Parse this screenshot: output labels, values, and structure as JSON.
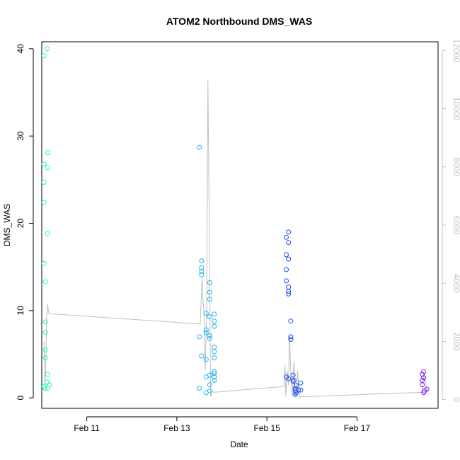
{
  "chart_data": {
    "type": "scatter",
    "title": "ATOM2 Northbound DMS_WAS",
    "xlabel": "Date",
    "ylabel": "DMS_WAS",
    "x_ticks": [
      "Feb 11",
      "Feb 13",
      "Feb 15",
      "Feb 17"
    ],
    "x_unit": "day of February",
    "x_range": [
      10.0,
      18.8
    ],
    "ylim": [
      -1.2,
      40.8
    ],
    "y_ticks": [
      "0",
      "10",
      "20",
      "30",
      "40"
    ],
    "y2lim": [
      -300,
      12300
    ],
    "y2_ticks": [
      "0",
      "2000",
      "4000",
      "6000",
      "8000",
      "10000",
      "12000"
    ],
    "grid": false,
    "legend": "none",
    "points": [
      {
        "x": 10.12,
        "y": 40.0,
        "color": "#2af5c8"
      },
      {
        "x": 10.05,
        "y": 39.2,
        "color": "#2af5c8"
      },
      {
        "x": 10.13,
        "y": 28.1,
        "color": "#2af5c8"
      },
      {
        "x": 10.05,
        "y": 26.8,
        "color": "#2af5c8"
      },
      {
        "x": 10.13,
        "y": 26.4,
        "color": "#2af5c8"
      },
      {
        "x": 10.05,
        "y": 24.7,
        "color": "#2af5c8"
      },
      {
        "x": 10.05,
        "y": 22.4,
        "color": "#2af5c8"
      },
      {
        "x": 10.13,
        "y": 18.8,
        "color": "#2af5c8"
      },
      {
        "x": 10.05,
        "y": 15.4,
        "color": "#2af5c8"
      },
      {
        "x": 10.08,
        "y": 13.3,
        "color": "#2af5c8"
      },
      {
        "x": 10.08,
        "y": 8.7,
        "color": "#2af5c8"
      },
      {
        "x": 10.08,
        "y": 7.5,
        "color": "#2af5c8"
      },
      {
        "x": 10.08,
        "y": 5.5,
        "color": "#2af5c8"
      },
      {
        "x": 10.08,
        "y": 4.6,
        "color": "#2af5c8"
      },
      {
        "x": 10.13,
        "y": 2.7,
        "color": "#2af5c8"
      },
      {
        "x": 10.12,
        "y": 1.8,
        "color": "#2af5c8"
      },
      {
        "x": 10.17,
        "y": 1.5,
        "color": "#2af5c8"
      },
      {
        "x": 10.05,
        "y": 1.3,
        "color": "#2af5c8"
      },
      {
        "x": 10.07,
        "y": 1.1,
        "color": "#2af5c8"
      },
      {
        "x": 10.13,
        "y": 1.1,
        "color": "#2af5c8"
      },
      {
        "x": 13.5,
        "y": 28.7,
        "color": "#1ab8f0"
      },
      {
        "x": 13.55,
        "y": 15.7,
        "color": "#1ab8f0"
      },
      {
        "x": 13.55,
        "y": 14.9,
        "color": "#1ab8f0"
      },
      {
        "x": 13.55,
        "y": 14.5,
        "color": "#1ab8f0"
      },
      {
        "x": 13.55,
        "y": 14.1,
        "color": "#1ab8f0"
      },
      {
        "x": 13.73,
        "y": 13.2,
        "color": "#1ab8f0"
      },
      {
        "x": 13.73,
        "y": 12.1,
        "color": "#1ab8f0"
      },
      {
        "x": 13.73,
        "y": 11.3,
        "color": "#1ab8f0"
      },
      {
        "x": 13.65,
        "y": 9.7,
        "color": "#1ab8f0"
      },
      {
        "x": 13.83,
        "y": 9.6,
        "color": "#1ab8f0"
      },
      {
        "x": 13.73,
        "y": 9.3,
        "color": "#1ab8f0"
      },
      {
        "x": 13.83,
        "y": 8.8,
        "color": "#1ab8f0"
      },
      {
        "x": 13.83,
        "y": 8.2,
        "color": "#1ab8f0"
      },
      {
        "x": 13.65,
        "y": 7.8,
        "color": "#1ab8f0"
      },
      {
        "x": 13.65,
        "y": 7.5,
        "color": "#1ab8f0"
      },
      {
        "x": 13.73,
        "y": 7.1,
        "color": "#1ab8f0"
      },
      {
        "x": 13.5,
        "y": 7.0,
        "color": "#1ab8f0"
      },
      {
        "x": 13.73,
        "y": 6.8,
        "color": "#1ab8f0"
      },
      {
        "x": 13.83,
        "y": 5.8,
        "color": "#1ab8f0"
      },
      {
        "x": 13.83,
        "y": 5.3,
        "color": "#1ab8f0"
      },
      {
        "x": 13.55,
        "y": 4.8,
        "color": "#1ab8f0"
      },
      {
        "x": 13.83,
        "y": 4.6,
        "color": "#1ab8f0"
      },
      {
        "x": 13.65,
        "y": 4.4,
        "color": "#1ab8f0"
      },
      {
        "x": 13.83,
        "y": 3.0,
        "color": "#1ab8f0"
      },
      {
        "x": 13.83,
        "y": 2.8,
        "color": "#1ab8f0"
      },
      {
        "x": 13.73,
        "y": 2.6,
        "color": "#1ab8f0"
      },
      {
        "x": 13.83,
        "y": 2.4,
        "color": "#1ab8f0"
      },
      {
        "x": 13.65,
        "y": 2.4,
        "color": "#1ab8f0"
      },
      {
        "x": 13.83,
        "y": 2.0,
        "color": "#1ab8f0"
      },
      {
        "x": 13.73,
        "y": 1.5,
        "color": "#1ab8f0"
      },
      {
        "x": 13.5,
        "y": 1.1,
        "color": "#1ab8f0"
      },
      {
        "x": 13.73,
        "y": 0.8,
        "color": "#1ab8f0"
      },
      {
        "x": 13.65,
        "y": 0.6,
        "color": "#1ab8f0"
      },
      {
        "x": 15.48,
        "y": 19.0,
        "color": "#1f4cf0"
      },
      {
        "x": 15.43,
        "y": 18.4,
        "color": "#1f4cf0"
      },
      {
        "x": 15.48,
        "y": 17.8,
        "color": "#1f4cf0"
      },
      {
        "x": 15.43,
        "y": 16.4,
        "color": "#1f4cf0"
      },
      {
        "x": 15.48,
        "y": 15.9,
        "color": "#1f4cf0"
      },
      {
        "x": 15.43,
        "y": 14.7,
        "color": "#1f4cf0"
      },
      {
        "x": 15.43,
        "y": 13.4,
        "color": "#1f4cf0"
      },
      {
        "x": 15.48,
        "y": 12.7,
        "color": "#1f4cf0"
      },
      {
        "x": 15.48,
        "y": 12.2,
        "color": "#1f4cf0"
      },
      {
        "x": 15.48,
        "y": 11.9,
        "color": "#1f4cf0"
      },
      {
        "x": 15.53,
        "y": 8.8,
        "color": "#1f4cf0"
      },
      {
        "x": 15.53,
        "y": 7.0,
        "color": "#1f4cf0"
      },
      {
        "x": 15.53,
        "y": 6.7,
        "color": "#1f4cf0"
      },
      {
        "x": 15.58,
        "y": 2.6,
        "color": "#1f4cf0"
      },
      {
        "x": 15.43,
        "y": 2.4,
        "color": "#1f4cf0"
      },
      {
        "x": 15.48,
        "y": 2.2,
        "color": "#1f4cf0"
      },
      {
        "x": 15.6,
        "y": 2.0,
        "color": "#1f4cf0"
      },
      {
        "x": 15.58,
        "y": 1.9,
        "color": "#1f4cf0"
      },
      {
        "x": 15.75,
        "y": 1.7,
        "color": "#1f4cf0"
      },
      {
        "x": 15.65,
        "y": 1.4,
        "color": "#1f4cf0"
      },
      {
        "x": 15.63,
        "y": 1.1,
        "color": "#1f4cf0"
      },
      {
        "x": 15.7,
        "y": 0.9,
        "color": "#1f4cf0"
      },
      {
        "x": 15.75,
        "y": 0.9,
        "color": "#1f4cf0"
      },
      {
        "x": 15.63,
        "y": 0.8,
        "color": "#1f4cf0"
      },
      {
        "x": 15.65,
        "y": 0.6,
        "color": "#1f4cf0"
      },
      {
        "x": 15.63,
        "y": 0.4,
        "color": "#1f4cf0"
      },
      {
        "x": 18.48,
        "y": 3.0,
        "color": "#8d1ff0"
      },
      {
        "x": 18.45,
        "y": 2.7,
        "color": "#8d1ff0"
      },
      {
        "x": 18.48,
        "y": 2.3,
        "color": "#8d1ff0"
      },
      {
        "x": 18.45,
        "y": 2.0,
        "color": "#8d1ff0"
      },
      {
        "x": 18.45,
        "y": 1.5,
        "color": "#8d1ff0"
      },
      {
        "x": 18.55,
        "y": 1.0,
        "color": "#8d1ff0"
      },
      {
        "x": 18.5,
        "y": 0.8,
        "color": "#8d1ff0"
      },
      {
        "x": 18.48,
        "y": 0.6,
        "color": "#8d1ff0"
      }
    ],
    "line": {
      "axis": "right",
      "color": "#c0c0c0",
      "x": [
        10.05,
        10.07,
        10.09,
        10.11,
        10.13,
        10.15,
        10.17,
        10.19,
        13.52,
        13.56,
        13.58,
        13.6,
        13.63,
        13.66,
        13.69,
        13.72,
        13.75,
        13.78,
        13.82,
        15.38,
        15.4,
        15.42,
        15.45,
        15.48,
        15.5,
        15.53,
        15.56,
        15.6,
        15.63,
        15.66,
        15.68,
        15.72,
        15.75,
        18.45,
        18.48,
        18.52,
        18.56
      ],
      "y": [
        2000,
        500,
        1200,
        2800,
        3300,
        3000,
        2950,
        2950,
        2600,
        4200,
        3500,
        3000,
        1000,
        3000,
        11000,
        6000,
        100,
        300,
        250,
        450,
        1200,
        100,
        1000,
        500,
        2200,
        1000,
        100,
        1300,
        100,
        300,
        1000,
        50,
        100,
        250,
        900,
        600,
        300
      ]
    }
  }
}
